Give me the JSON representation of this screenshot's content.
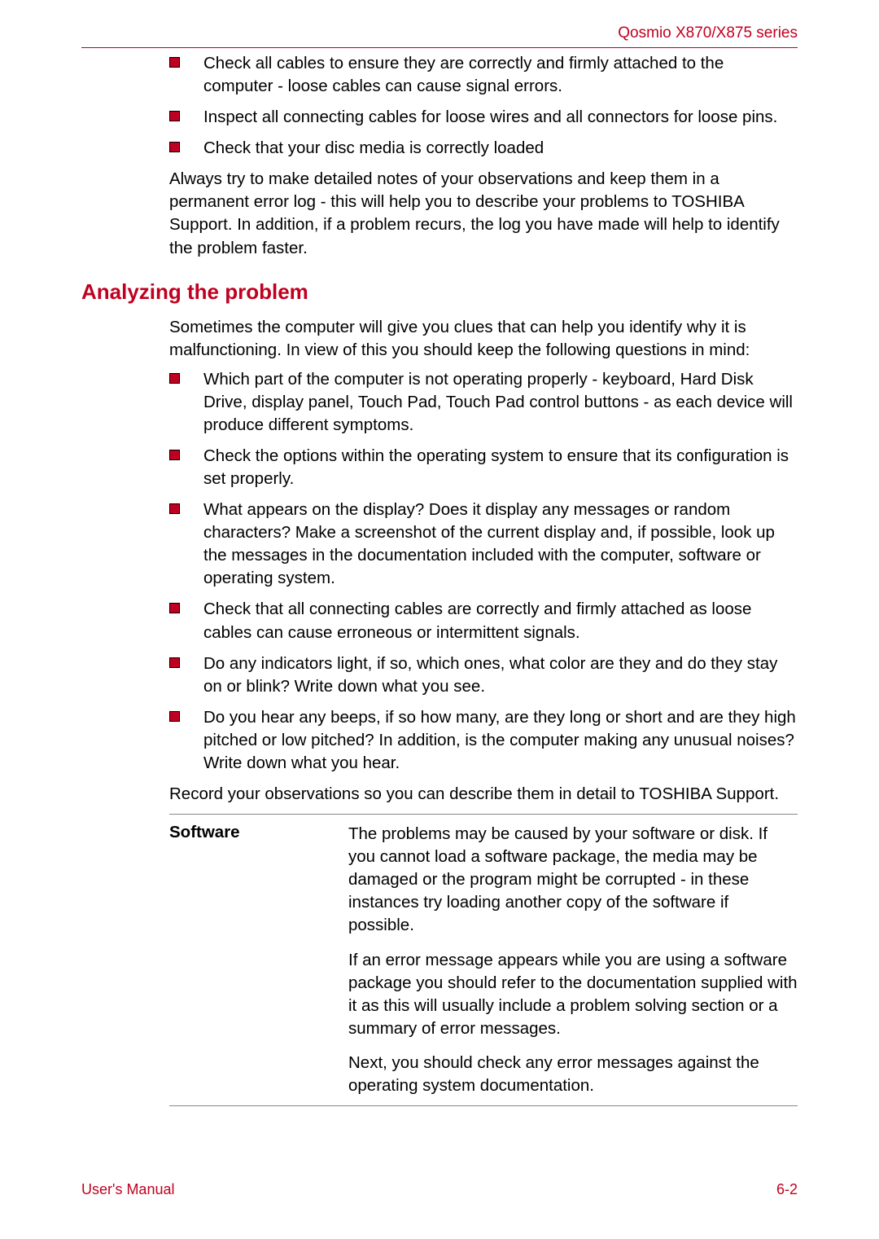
{
  "header": {
    "series_label": "Qosmio X870/X875 series"
  },
  "colors": {
    "accent": "#c00020",
    "text": "#000000",
    "rule": "#888888",
    "bg": "#ffffff"
  },
  "intro_bullets": [
    "Check all cables to ensure they are correctly and firmly attached to the computer - loose cables can cause signal errors.",
    "Inspect all connecting cables for loose wires and all connectors for loose pins.",
    "Check that your disc media is correctly loaded"
  ],
  "intro_para": "Always try to make detailed notes of your observations and keep them in a permanent error log - this will help you to describe your problems to TOSHIBA Support. In addition, if a problem recurs, the log you have made will help to identify the problem faster.",
  "section": {
    "heading": "Analyzing the problem",
    "lead": "Sometimes the computer will give you clues that can help you identify why it is malfunctioning. In view of this you should keep the following questions in mind:",
    "bullets": [
      "Which part of the computer is not operating properly - keyboard, Hard Disk Drive, display panel, Touch Pad, Touch Pad control buttons - as each device will produce different symptoms.",
      "Check the options within the operating system to ensure that its configuration is set properly.",
      "What appears on the display? Does it display any messages or random characters? Make a screenshot of the current display and, if possible, look up the messages in the documentation included with the computer, software or operating system.",
      "Check that all connecting cables are correctly and firmly attached as loose cables can cause erroneous or intermittent signals.",
      "Do any indicators light, if so, which ones, what color are they and do they stay on or blink? Write down what you see.",
      "Do you hear any beeps, if so how many, are they long or short and are they high pitched or low pitched? In addition, is the computer making any unusual noises? Write down what you hear."
    ],
    "closing": "Record your observations so you can describe them in detail to TOSHIBA Support."
  },
  "table": {
    "rows": [
      {
        "label": "Software",
        "paras": [
          "The problems may be caused by your software or disk. If you cannot load a software package, the media may be damaged or the program might be corrupted - in these instances try loading another copy of the software if possible.",
          "If an error message appears while you are using a software package you should refer to the documentation supplied with it as this will usually include a problem solving section or a summary of error messages.",
          "Next, you should check any error messages against the operating system documentation."
        ]
      }
    ]
  },
  "footer": {
    "left": "User's Manual",
    "right": "6-2"
  }
}
